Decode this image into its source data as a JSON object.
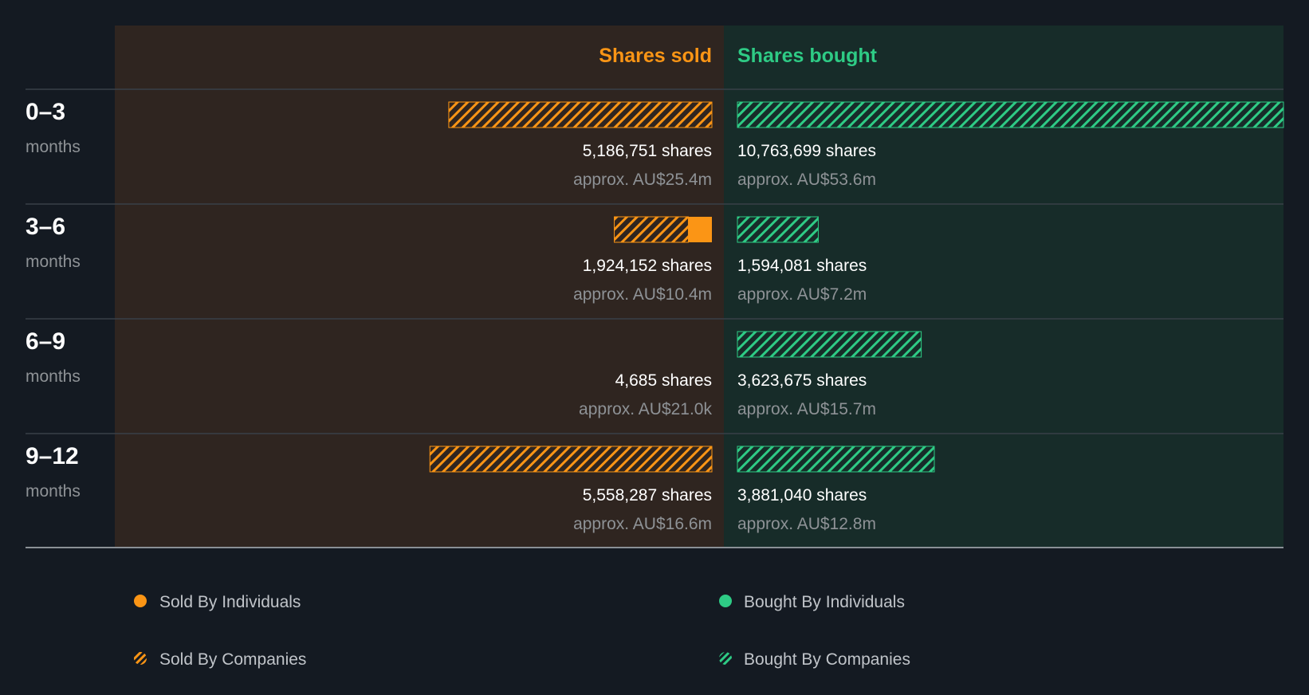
{
  "colors": {
    "background": "#141a22",
    "sold_panel": "#2f2520",
    "bought_panel": "#172c29",
    "sold": "#fb9515",
    "bought": "#2ecb85",
    "muted_text": "#8e9296",
    "white_text": "#ffffff",
    "divider": "#384048"
  },
  "chart_data": {
    "type": "bar",
    "headers": {
      "sold": "Shares sold",
      "bought": "Shares bought"
    },
    "rows": [
      {
        "period": "0–3",
        "unit": "months",
        "sold": {
          "shares": 5186751,
          "companies": 5186751,
          "individuals": 0,
          "shares_label": "5,186,751 shares",
          "value_label": "approx. AU$25.4m"
        },
        "bought": {
          "shares": 10763699,
          "companies": 10763699,
          "individuals": 0,
          "shares_label": "10,763,699 shares",
          "value_label": "approx. AU$53.6m"
        }
      },
      {
        "period": "3–6",
        "unit": "months",
        "sold": {
          "shares": 1924152,
          "companies": 1460000,
          "individuals": 464152,
          "shares_label": "1,924,152 shares",
          "value_label": "approx. AU$10.4m"
        },
        "bought": {
          "shares": 1594081,
          "companies": 1594081,
          "individuals": 0,
          "shares_label": "1,594,081 shares",
          "value_label": "approx. AU$7.2m"
        }
      },
      {
        "period": "6–9",
        "unit": "months",
        "sold": {
          "shares": 4685,
          "companies": 4685,
          "individuals": 0,
          "shares_label": "4,685 shares",
          "value_label": "approx. AU$21.0k"
        },
        "bought": {
          "shares": 3623675,
          "companies": 3623675,
          "individuals": 0,
          "shares_label": "3,623,675 shares",
          "value_label": "approx. AU$15.7m"
        }
      },
      {
        "period": "9–12",
        "unit": "months",
        "sold": {
          "shares": 5558287,
          "companies": 5558287,
          "individuals": 0,
          "shares_label": "5,558,287 shares",
          "value_label": "approx. AU$16.6m"
        },
        "bought": {
          "shares": 3881040,
          "companies": 3881040,
          "individuals": 0,
          "shares_label": "3,881,040 shares",
          "value_label": "approx. AU$12.8m"
        }
      }
    ],
    "legend": {
      "sold_individuals": "Sold By Individuals",
      "sold_companies": "Sold By Companies",
      "bought_individuals": "Bought By Individuals",
      "bought_companies": "Bought By Companies"
    },
    "max_shares": 10763699
  }
}
